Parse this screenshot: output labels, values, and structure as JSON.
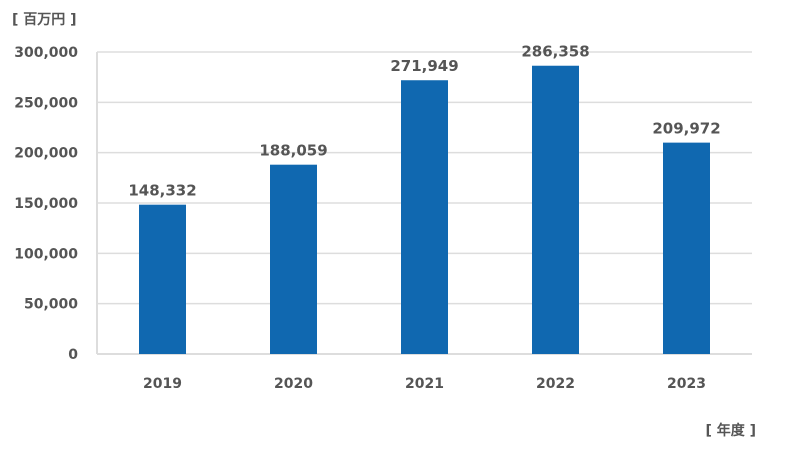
{
  "chart_data": {
    "type": "bar",
    "ylabel": "[ 百万円 ]",
    "xlabel": "[ 年度 ]",
    "categories": [
      "2019",
      "2020",
      "2021",
      "2022",
      "2023"
    ],
    "values": [
      148332,
      188059,
      271949,
      286358,
      209972
    ],
    "data_labels": [
      "148,332",
      "188,059",
      "271,949",
      "286,358",
      "209,972"
    ],
    "y_ticks": [
      "0",
      "50,000",
      "100,000",
      "150,000",
      "200,000",
      "250,000",
      "300,000"
    ],
    "ylim": [
      0,
      300000
    ],
    "grid": true,
    "bar_color": "#1068b0",
    "grid_color": "#dddddd"
  }
}
